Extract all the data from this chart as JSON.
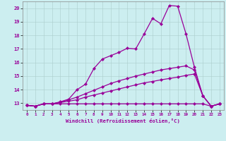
{
  "xlabel": "Windchill (Refroidissement éolien,°C)",
  "background_color": "#cceef0",
  "grid_color": "#aacccc",
  "line_color": "#990099",
  "x_values": [
    0,
    1,
    2,
    3,
    4,
    5,
    6,
    7,
    8,
    9,
    10,
    11,
    12,
    13,
    14,
    15,
    16,
    17,
    18,
    19,
    20,
    21,
    22,
    23
  ],
  "xlim": [
    -0.5,
    23.5
  ],
  "ylim": [
    12.5,
    20.5
  ],
  "yticks": [
    13,
    14,
    15,
    16,
    17,
    18,
    19,
    20
  ],
  "xticks": [
    0,
    1,
    2,
    3,
    4,
    5,
    6,
    7,
    8,
    9,
    10,
    11,
    12,
    13,
    14,
    15,
    16,
    17,
    18,
    19,
    20,
    21,
    22,
    23
  ],
  "series1": [
    12.85,
    12.78,
    12.95,
    12.95,
    12.95,
    12.95,
    12.95,
    12.95,
    12.95,
    12.95,
    12.95,
    12.95,
    12.95,
    12.95,
    12.95,
    12.95,
    12.95,
    12.95,
    12.95,
    12.95,
    12.95,
    12.95,
    12.78,
    12.95
  ],
  "series2": [
    12.85,
    12.78,
    12.95,
    12.95,
    13.05,
    13.15,
    13.25,
    13.45,
    13.6,
    13.75,
    13.9,
    14.05,
    14.2,
    14.35,
    14.5,
    14.6,
    14.72,
    14.82,
    14.92,
    15.05,
    15.15,
    13.55,
    12.78,
    12.95
  ],
  "series3": [
    12.85,
    12.78,
    12.95,
    12.95,
    13.08,
    13.25,
    13.45,
    13.7,
    13.95,
    14.2,
    14.45,
    14.65,
    14.82,
    15.0,
    15.15,
    15.3,
    15.45,
    15.55,
    15.65,
    15.75,
    15.45,
    13.55,
    12.78,
    12.95
  ],
  "series4": [
    12.85,
    12.78,
    12.95,
    12.95,
    13.1,
    13.3,
    14.0,
    14.4,
    15.55,
    16.25,
    16.5,
    16.75,
    17.05,
    17.0,
    18.1,
    19.25,
    18.85,
    20.2,
    20.15,
    18.1,
    15.65,
    13.55,
    12.78,
    12.95
  ]
}
